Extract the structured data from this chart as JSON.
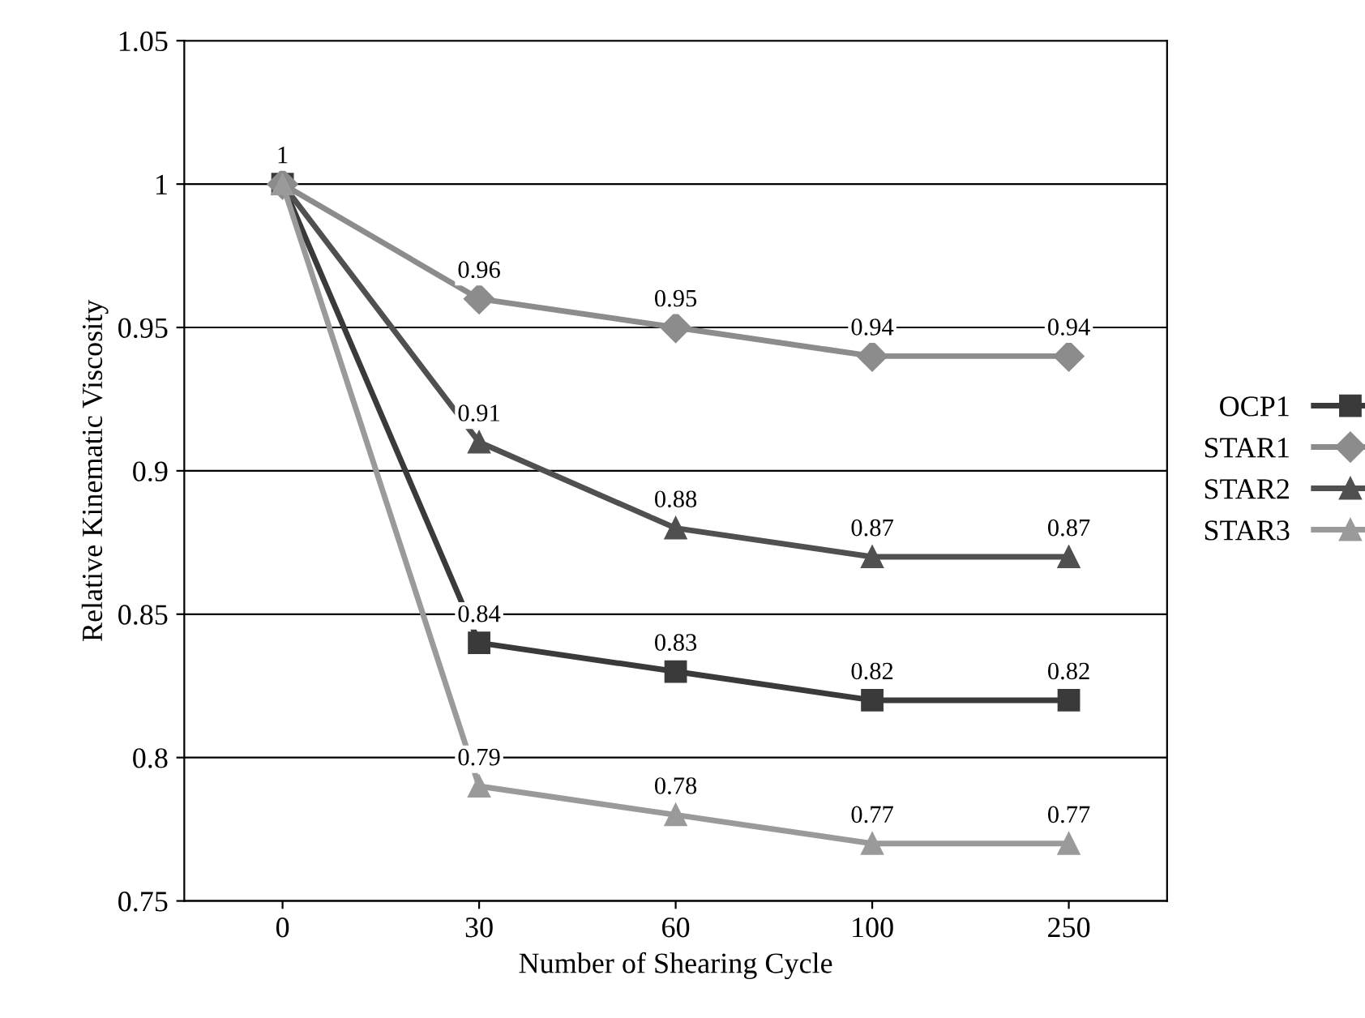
{
  "chart_data": {
    "type": "line",
    "xlabel": "Number of Shearing Cycle",
    "ylabel": "Relative Kinematic Viscosity",
    "categories": [
      "0",
      "30",
      "60",
      "100",
      "250"
    ],
    "series": [
      {
        "name": "OCP1",
        "color": "#3a3a3a",
        "marker": "square",
        "values": [
          1,
          0.84,
          0.83,
          0.82,
          0.82
        ],
        "value_labels": [
          null,
          "0.84",
          "0.83",
          "0.82",
          "0.82"
        ]
      },
      {
        "name": "STAR1",
        "color": "#8c8c8c",
        "marker": "diamond",
        "values": [
          1,
          0.96,
          0.95,
          0.94,
          0.94
        ],
        "value_labels": [
          "1",
          "0.96",
          "0.95",
          "0.94",
          "0.94"
        ]
      },
      {
        "name": "STAR2",
        "color": "#505050",
        "marker": "triangle",
        "values": [
          1,
          0.91,
          0.88,
          0.87,
          0.87
        ],
        "value_labels": [
          null,
          "0.91",
          "0.88",
          "0.87",
          "0.87"
        ]
      },
      {
        "name": "STAR3",
        "color": "#9a9a9a",
        "marker": "triangle",
        "values": [
          1,
          0.79,
          0.78,
          0.77,
          0.77
        ],
        "value_labels": [
          null,
          "0.79",
          "0.78",
          "0.77",
          "0.77"
        ]
      }
    ],
    "ylim": [
      0.75,
      1.05
    ],
    "yticks": [
      0.75,
      0.8,
      0.85,
      0.9,
      0.95,
      1,
      1.05
    ],
    "grid": "y",
    "legend": "right",
    "line_style": "solid"
  }
}
